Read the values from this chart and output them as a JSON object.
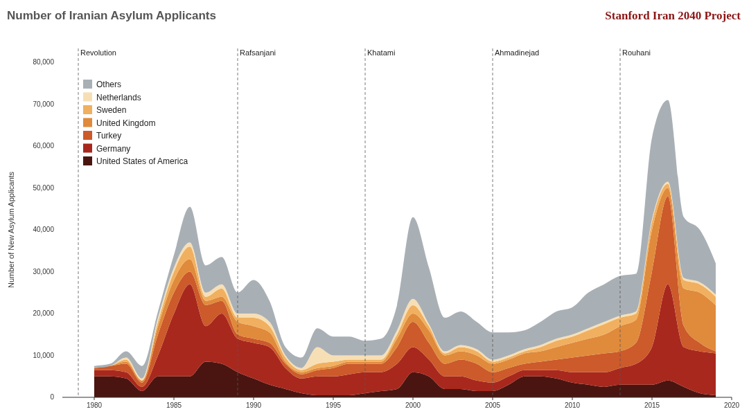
{
  "chart_data": {
    "type": "area",
    "stacked": true,
    "title": "Number of Iranian Asylum Applicants",
    "subtitle": "Stanford Iran 2040 Project",
    "ylabel": "Number of New Asylum Applicants",
    "x": [
      1980,
      1981,
      1982,
      1983,
      1984,
      1985,
      1986,
      1987,
      1988,
      1989,
      1990,
      1991,
      1992,
      1993,
      1994,
      1995,
      1996,
      1997,
      1998,
      1999,
      2000,
      2001,
      2002,
      2003,
      2004,
      2005,
      2006,
      2007,
      2008,
      2009,
      2010,
      2011,
      2012,
      2013,
      2014,
      2015,
      2016,
      2017,
      2018,
      2019
    ],
    "xlim": [
      1978,
      2020
    ],
    "xticks": [
      1980,
      1985,
      1990,
      1995,
      2000,
      2005,
      2010,
      2015,
      2020
    ],
    "ylim": [
      0,
      80000
    ],
    "yticks": [
      {
        "value": 0,
        "label": "0"
      },
      {
        "value": 10000,
        "label": "10,000"
      },
      {
        "value": 20000,
        "label": "20,000"
      },
      {
        "value": 30000,
        "label": "30,000"
      },
      {
        "value": 40000,
        "label": "40,000"
      },
      {
        "value": 50000,
        "label": "50,000"
      },
      {
        "value": 60000,
        "label": "60,000"
      },
      {
        "value": 70000,
        "label": "70,000"
      },
      {
        "value": 80000,
        "label": "80,000"
      }
    ],
    "legend": "top left",
    "series": [
      {
        "name": "United States of America",
        "color": "#4a1510",
        "values": [
          5000,
          5000,
          4500,
          1500,
          5000,
          5000,
          5000,
          8500,
          8000,
          6000,
          4500,
          3000,
          2000,
          1000,
          500,
          500,
          500,
          1000,
          1500,
          2000,
          6000,
          5000,
          2000,
          2000,
          1500,
          1500,
          3000,
          5000,
          5000,
          4500,
          3500,
          3000,
          2500,
          3000,
          3000,
          3000,
          4000,
          2500,
          1000,
          500
        ]
      },
      {
        "name": "Germany",
        "color": "#a8281e",
        "values": [
          1500,
          1500,
          1500,
          1000,
          5000,
          15000,
          22000,
          8500,
          12000,
          8000,
          8500,
          9000,
          5000,
          3500,
          4500,
          4500,
          5000,
          5000,
          4500,
          6000,
          6000,
          4000,
          3000,
          3000,
          2500,
          2000,
          2000,
          1500,
          1500,
          2000,
          2500,
          3000,
          3500,
          4000,
          5000,
          9000,
          23000,
          9500,
          10000,
          10000
        ]
      },
      {
        "name": "Turkey",
        "color": "#cc5a2a",
        "values": [
          500,
          1000,
          2000,
          1000,
          5000,
          5000,
          3000,
          5000,
          3000,
          1000,
          1000,
          1000,
          1000,
          1000,
          1500,
          2000,
          2500,
          2000,
          2000,
          4000,
          6000,
          4000,
          3000,
          4000,
          4000,
          2500,
          2000,
          1500,
          2000,
          2500,
          3500,
          4000,
          4500,
          4000,
          5000,
          18000,
          21000,
          5000,
          2000,
          500
        ]
      },
      {
        "name": "United Kingdom",
        "color": "#e08a3c",
        "values": [
          0,
          0,
          500,
          500,
          2000,
          3000,
          3000,
          1000,
          1000,
          3000,
          3000,
          2500,
          500,
          500,
          500,
          500,
          500,
          500,
          500,
          2000,
          2000,
          3000,
          2000,
          2000,
          2000,
          2000,
          2000,
          2500,
          2500,
          3000,
          3500,
          4000,
          4500,
          6000,
          5500,
          10000,
          2000,
          9000,
          12000,
          11000
        ]
      },
      {
        "name": "Sweden",
        "color": "#f0b060",
        "values": [
          0,
          0,
          500,
          0,
          1000,
          2000,
          3000,
          1000,
          2000,
          1000,
          2000,
          1500,
          1000,
          500,
          1000,
          1000,
          500,
          500,
          500,
          1000,
          2000,
          1000,
          500,
          1000,
          1000,
          500,
          500,
          500,
          1000,
          1500,
          1500,
          2000,
          2500,
          2000,
          1500,
          2000,
          1000,
          2000,
          2000,
          2000
        ]
      },
      {
        "name": "Netherlands",
        "color": "#f7dfb5",
        "values": [
          0,
          0,
          500,
          500,
          1000,
          1000,
          1000,
          1000,
          1000,
          1000,
          1000,
          1000,
          500,
          500,
          4000,
          1500,
          1000,
          1000,
          1000,
          1000,
          1500,
          500,
          500,
          500,
          500,
          500,
          500,
          500,
          500,
          500,
          500,
          500,
          500,
          500,
          500,
          500,
          500,
          500,
          500,
          500
        ]
      },
      {
        "name": "Others",
        "color": "#a9b0b5",
        "values": [
          500,
          500,
          1500,
          3000,
          1500,
          3000,
          8500,
          6500,
          6500,
          5000,
          8000,
          5000,
          2000,
          2500,
          4500,
          4500,
          4500,
          3500,
          4000,
          6000,
          19500,
          13500,
          8000,
          8000,
          6500,
          6500,
          5500,
          4500,
          5500,
          6500,
          6500,
          8500,
          9000,
          9500,
          9000,
          19500,
          19500,
          14500,
          12500,
          7500
        ]
      }
    ],
    "ref_lines": [
      {
        "axis": "x",
        "value": 1979,
        "label": "Revolution",
        "color": "#555555",
        "line_style": "dashed"
      },
      {
        "axis": "x",
        "value": 1989,
        "label": "Rafsanjani",
        "color": "#555555",
        "line_style": "dashed"
      },
      {
        "axis": "x",
        "value": 1997,
        "label": "Khatami",
        "color": "#555555",
        "line_style": "dashed"
      },
      {
        "axis": "x",
        "value": 2005,
        "label": "Ahmadinejad",
        "color": "#555555",
        "line_style": "dashed"
      },
      {
        "axis": "x",
        "value": 2013,
        "label": "Rouhani",
        "color": "#555555",
        "line_style": "dashed"
      }
    ]
  }
}
